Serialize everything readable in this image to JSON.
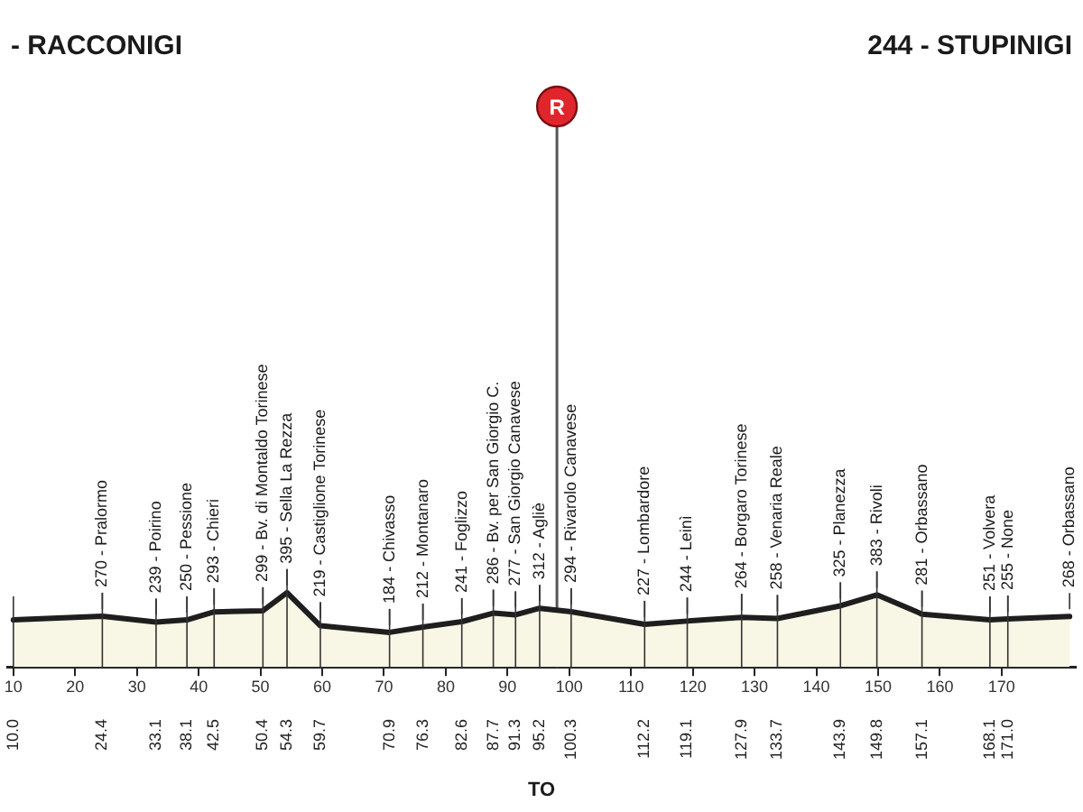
{
  "chart_data": {
    "type": "area",
    "annotations": [
      "- RACCONIGI",
      "244 - STUPINIGI",
      "TO"
    ],
    "x": [
      10,
      24.4,
      33.1,
      38.1,
      42.5,
      50.4,
      54.3,
      59.7,
      70.9,
      76.3,
      82.6,
      87.7,
      91.3,
      95.2,
      100.3,
      112.2,
      119.1,
      127.9,
      133.7,
      143.9,
      149.8,
      157.1,
      168.1,
      171,
      181
    ],
    "series": [
      {
        "color": "#1e1e1e",
        "values": [
          250,
          270,
          239,
          250,
          293,
          299,
          395,
          219,
          184,
          212,
          241,
          286,
          277,
          312,
          294,
          227,
          244,
          264,
          258,
          325,
          383,
          281,
          251,
          255,
          268
        ],
        "value_labels": [
          null,
          "270 - Pralormo",
          "239 - Poirino",
          "250 - Pessione",
          "293 - Chieri",
          "299 - Bv. di Montaldo Torinese",
          "395 - Sella La Rezza",
          "219 - Castiglione Torinese",
          "184 - Chivasso",
          "212 - Montanaro",
          "241 - Foglizzo",
          "286 - Bv. per San Giorgio C.",
          "277 - San Giorgio Canavese",
          "312 - Agliè",
          "294 - Rivarolo Canavese",
          "227 - Lombardore",
          "244 - Leinì",
          "264 - Borgaro Torinese",
          "258 - Venaria Reale",
          "325 - Planezza",
          "383 - Rivoli",
          "281 - Orbassano",
          "251 - Volvera",
          "255 - None",
          "268 - Orbassano"
        ]
      }
    ],
    "xlim": [
      9,
      182
    ],
    "xticks": [
      {
        "value": 10,
        "label": "10.0"
      },
      24.4,
      33.1,
      38.1,
      42.5,
      50.4,
      54.3,
      59.7,
      70.9,
      76.3,
      82.6,
      87.7,
      91.3,
      95.2,
      100.3,
      112.2,
      119.1,
      127.9,
      133.7,
      143.9,
      149.8,
      157.1,
      168.1,
      {
        "value": 171,
        "label": "171.0"
      }
    ],
    "x2lim": [
      9,
      182
    ],
    "x2ticks": [
      10,
      20,
      30,
      40,
      50,
      60,
      70,
      80,
      90,
      100,
      110,
      120,
      130,
      140,
      150,
      160,
      170
    ],
    "ref_lines": [
      {
        "axis": "x",
        "value": 98,
        "label": "R",
        "color": "#555555"
      }
    ],
    "grid": "x",
    "tick_labels": "x"
  }
}
